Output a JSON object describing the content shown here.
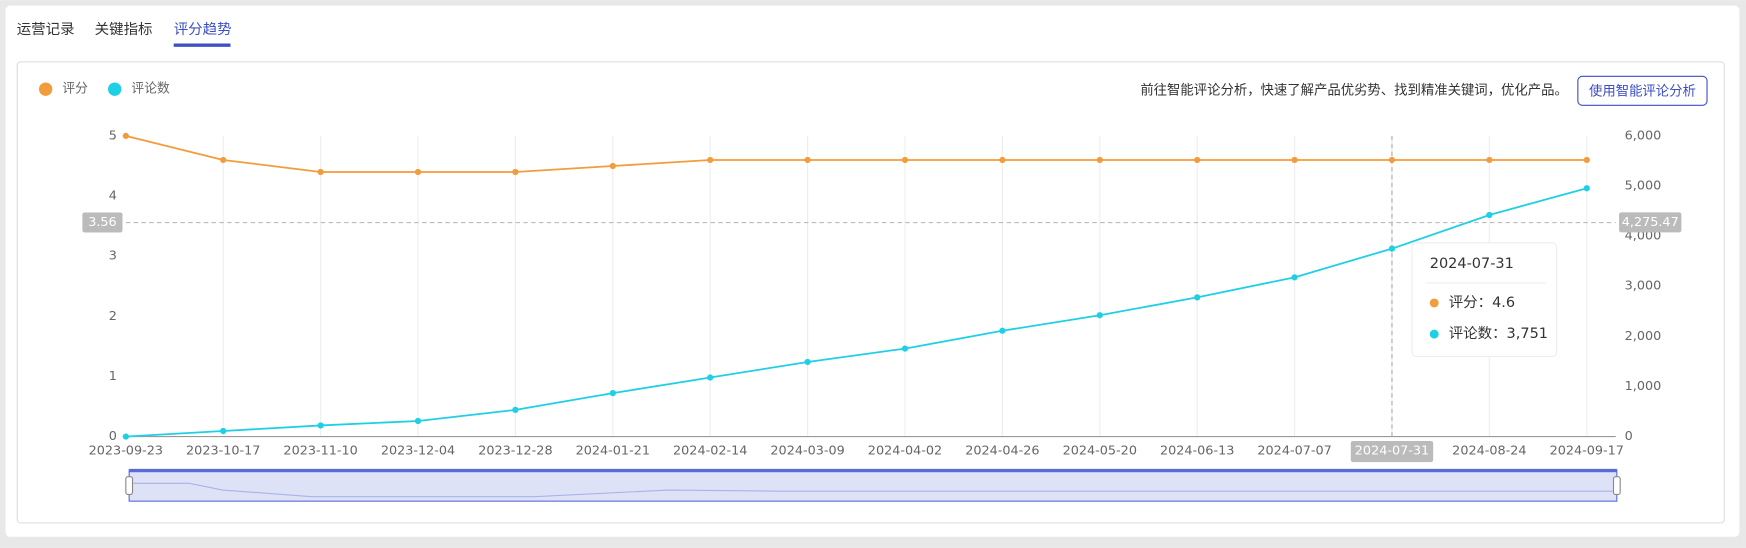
{
  "tabs": [
    "运营记录",
    "关键指标",
    "评分趋势"
  ],
  "notice": "前往智能评论分析，快速了解产品优劣势、找到精准关键词，优化产品。",
  "button": "使用智能评论分析",
  "chart_data": {
    "type": "line",
    "x": [
      "2023-09-23",
      "2023-10-17",
      "2023-11-10",
      "2023-12-04",
      "2023-12-28",
      "2024-01-21",
      "2024-02-14",
      "2024-03-09",
      "2024-04-02",
      "2024-04-26",
      "2024-05-20",
      "2024-06-13",
      "2024-07-07",
      "2024-07-31",
      "2024-08-24",
      "2024-09-17"
    ],
    "series": [
      {
        "name": "评分",
        "color": "#f39c3b",
        "values": [
          5,
          4.6,
          4.4,
          4.4,
          4.4,
          4.5,
          4.6,
          4.6,
          4.6,
          4.6,
          4.6,
          4.6,
          4.6,
          4.6,
          4.6,
          4.6
        ]
      },
      {
        "name": "评论数",
        "color": "#1fcfe6",
        "axis": "y2",
        "values": [
          0,
          111,
          222,
          311,
          533,
          867,
          1178,
          1489,
          1756,
          2111,
          2422,
          2778,
          3178,
          3751,
          4422,
          4956
        ]
      }
    ],
    "ylim": [
      0,
      5
    ],
    "yticks": [
      0,
      1,
      2,
      3,
      4,
      5
    ],
    "y2lim": [
      0,
      6000
    ],
    "y2ticks": [
      0,
      {
        "value": 1000,
        "label": "1,000"
      },
      {
        "value": 2000,
        "label": "2,000"
      },
      {
        "value": 3000,
        "label": "3,000"
      },
      {
        "value": 4000,
        "label": "4,000"
      },
      {
        "value": 5000,
        "label": "5,000"
      },
      {
        "value": 6000,
        "label": "6,000"
      }
    ],
    "grid": "x",
    "pointer": {
      "x": "2024-07-31",
      "y": 3.56,
      "y2": {
        "value": 4275.47,
        "label": "4,275.47"
      }
    },
    "tooltip": {
      "title": "2024-07-31",
      "lines": [
        "评分：4.6",
        "评论数：3,751"
      ]
    }
  }
}
